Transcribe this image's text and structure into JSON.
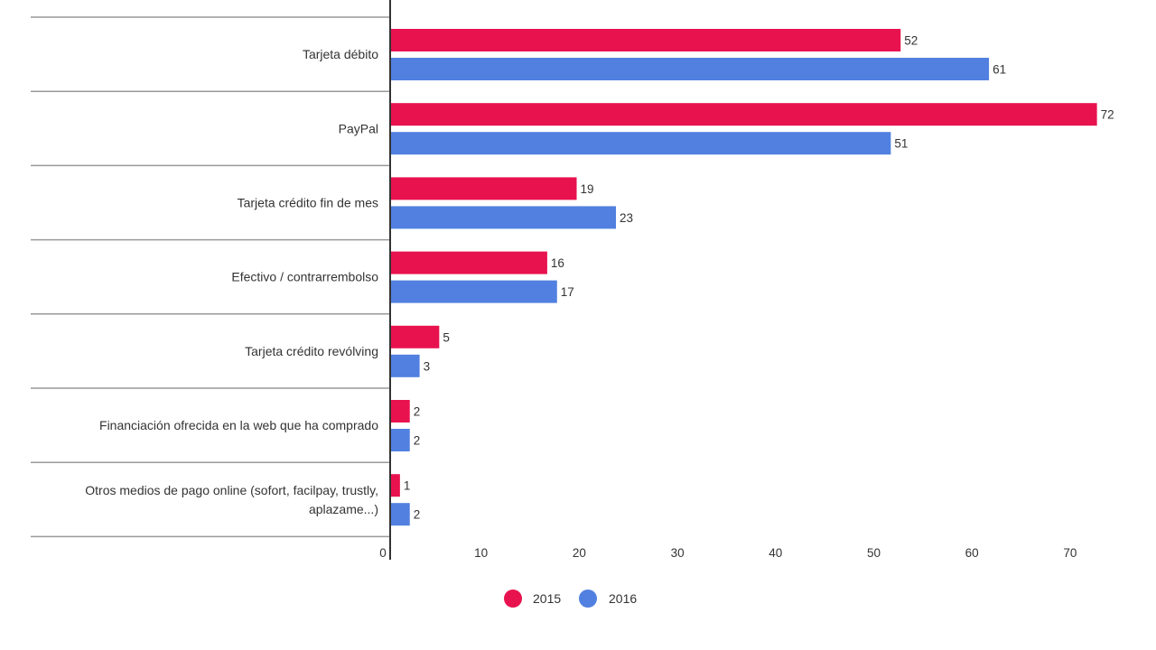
{
  "chart_data": {
    "type": "bar",
    "orientation": "horizontal",
    "categories": [
      "Tarjeta débito",
      "PayPal",
      "Tarjeta crédito fin de mes",
      "Efectivo / contrarrembolso",
      "Tarjeta crédito revólving",
      "Financiación ofrecida en la web que ha comprado",
      "Otros medios de pago online (sofort, facilpay, trustly, aplazame...)"
    ],
    "category_lines": [
      [
        "Tarjeta débito"
      ],
      [
        "PayPal"
      ],
      [
        "Tarjeta crédito fin de mes"
      ],
      [
        "Efectivo / contrarrembolso"
      ],
      [
        "Tarjeta crédito revólving"
      ],
      [
        "Financiación ofrecida en la web que ha comprado"
      ],
      [
        "Otros medios de pago online (sofort, facilpay, trustly,",
        "aplazame...)"
      ]
    ],
    "series": [
      {
        "name": "2015",
        "color": "#e8124f",
        "values": [
          52,
          72,
          19,
          16,
          5,
          2,
          1
        ]
      },
      {
        "name": "2016",
        "color": "#5180e0",
        "values": [
          61,
          51,
          23,
          17,
          3,
          2,
          2
        ]
      }
    ],
    "x_ticks": [
      "0",
      "10",
      "20",
      "30",
      "40",
      "50",
      "60",
      "70"
    ],
    "xlim": [
      0,
      74
    ],
    "title": "",
    "xlabel": "",
    "ylabel": "",
    "legend_position": "bottom",
    "grid": false
  }
}
